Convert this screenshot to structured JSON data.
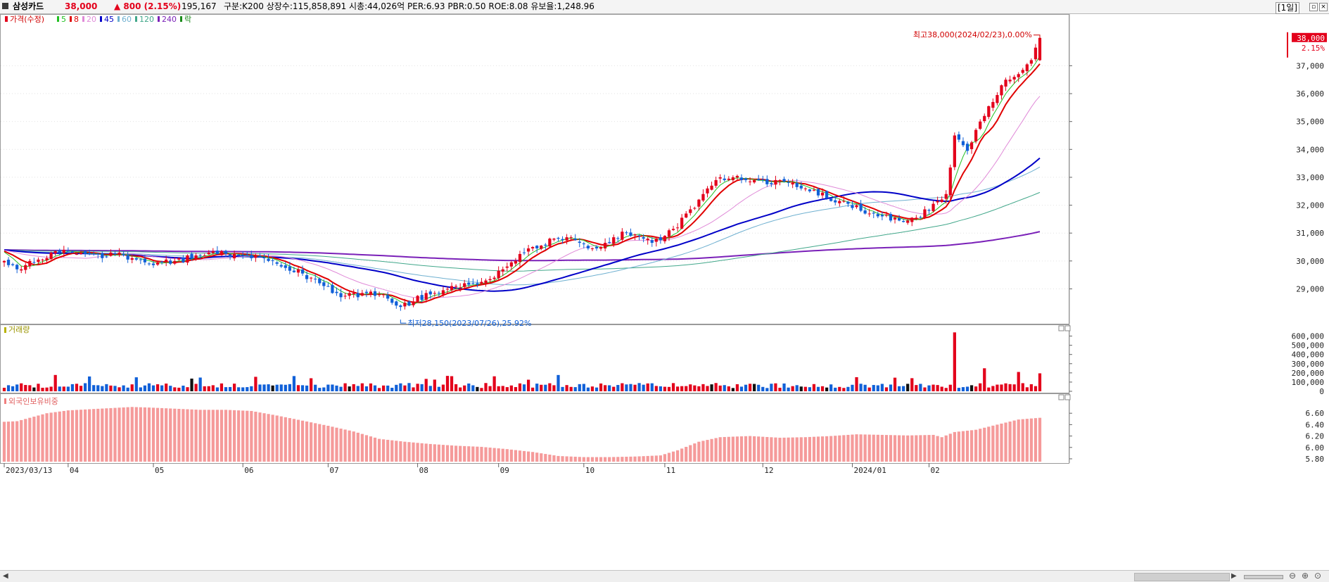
{
  "header": {
    "name": "삼성카드",
    "price": "38,000",
    "change": "▲ 800 (2.15%)",
    "volume": "195,167",
    "stats": "구분:K200 상장수:115,858,891 시총:44,026억 PER:6.93 PBR:0.50 ROE:8.08 유보율:1,248.96",
    "period_button": "[1일]",
    "minimize_icon": "minimize-icon",
    "close_icon": "close-icon"
  },
  "legend": {
    "price_label": "가격(수정)",
    "ma_labels": [
      "5",
      "8",
      "20",
      "45",
      "60",
      "120",
      "240"
    ],
    "ma_colors": [
      "#22c022",
      "#e00000",
      "#e08ad8",
      "#0000c8",
      "#6fb0d0",
      "#41a78a",
      "#7a20b8"
    ],
    "extra_label": "락"
  },
  "annotations": {
    "high_label": "최고38,000(2024/02/23),0.00%",
    "low_label": "최저28,150(2023/07/26),25.92%",
    "last_price_badge": "38,000",
    "last_change_badge": "2.15%"
  },
  "chart_data": {
    "type": "candlestick",
    "title": "삼성카드",
    "x_tick_labels": [
      "2023/03/13",
      "04",
      "05",
      "06",
      "07",
      "08",
      "09",
      "10",
      "11",
      "12",
      "2024/01",
      "02"
    ],
    "x_tick_positions_bar_index": [
      0,
      15,
      35,
      56,
      76,
      97,
      116,
      136,
      155,
      178,
      199,
      217
    ],
    "panels": [
      {
        "name": "가격(수정)",
        "y_ticks": [
          29000,
          30000,
          31000,
          32000,
          33000,
          34000,
          35000,
          36000,
          37000
        ],
        "ylim": [
          27800,
          38550
        ],
        "approx_close_path": [
          [
            0,
            30100
          ],
          [
            3,
            29600
          ],
          [
            5,
            29900
          ],
          [
            8,
            30000
          ],
          [
            11,
            30200
          ],
          [
            14,
            30350
          ],
          [
            17,
            30300
          ],
          [
            20,
            30250
          ],
          [
            23,
            30200
          ],
          [
            26,
            30300
          ],
          [
            29,
            30100
          ],
          [
            32,
            30050
          ],
          [
            34,
            29950
          ],
          [
            37,
            29900
          ],
          [
            40,
            30000
          ],
          [
            43,
            30100
          ],
          [
            46,
            30250
          ],
          [
            49,
            30300
          ],
          [
            52,
            30250
          ],
          [
            55,
            30200
          ],
          [
            58,
            30150
          ],
          [
            61,
            30050
          ],
          [
            64,
            29900
          ],
          [
            67,
            29750
          ],
          [
            70,
            29500
          ],
          [
            73,
            29350
          ],
          [
            76,
            29050
          ],
          [
            79,
            28750
          ],
          [
            82,
            28800
          ],
          [
            85,
            28850
          ],
          [
            88,
            28750
          ],
          [
            91,
            28600
          ],
          [
            93,
            28350
          ],
          [
            96,
            28550
          ],
          [
            99,
            28800
          ],
          [
            102,
            28950
          ],
          [
            105,
            29050
          ],
          [
            108,
            29100
          ],
          [
            111,
            29150
          ],
          [
            114,
            29300
          ],
          [
            117,
            29700
          ],
          [
            120,
            30050
          ],
          [
            123,
            30350
          ],
          [
            126,
            30600
          ],
          [
            129,
            30800
          ],
          [
            132,
            30900
          ],
          [
            134,
            30700
          ],
          [
            137,
            30400
          ],
          [
            140,
            30600
          ],
          [
            143,
            30850
          ],
          [
            146,
            30950
          ],
          [
            149,
            30800
          ],
          [
            152,
            30650
          ],
          [
            155,
            30900
          ],
          [
            158,
            31300
          ],
          [
            161,
            31800
          ],
          [
            164,
            32400
          ],
          [
            167,
            32900
          ],
          [
            170,
            33000
          ],
          [
            173,
            33000
          ],
          [
            176,
            32800
          ],
          [
            179,
            32800
          ],
          [
            182,
            32800
          ],
          [
            185,
            32800
          ],
          [
            188,
            32600
          ],
          [
            191,
            32400
          ],
          [
            194,
            32200
          ],
          [
            197,
            32100
          ],
          [
            200,
            31900
          ],
          [
            203,
            31700
          ],
          [
            206,
            31550
          ],
          [
            209,
            31500
          ],
          [
            212,
            31450
          ],
          [
            215,
            31650
          ],
          [
            218,
            32000
          ],
          [
            221,
            32400
          ],
          [
            223,
            34500
          ],
          [
            226,
            34000
          ],
          [
            229,
            35000
          ],
          [
            232,
            35800
          ],
          [
            235,
            36500
          ],
          [
            238,
            36800
          ],
          [
            241,
            37200
          ],
          [
            243,
            38000
          ]
        ],
        "high": {
          "value": 38000,
          "date": "2024/02/23"
        },
        "low": {
          "value": 28150,
          "date": "2023/07/26"
        },
        "last": 38000,
        "moving_averages": [
          {
            "name": "5",
            "color": "#22c022"
          },
          {
            "name": "8",
            "color": "#e00000"
          },
          {
            "name": "20",
            "color": "#e08ad8"
          },
          {
            "name": "45",
            "color": "#0000c8"
          },
          {
            "name": "60",
            "color": "#6fb0d0"
          },
          {
            "name": "120",
            "color": "#41a78a"
          },
          {
            "name": "240",
            "color": "#7a20b8"
          }
        ]
      },
      {
        "name": "거래량",
        "y_ticks": [
          0,
          100000,
          200000,
          300000,
          400000,
          500000,
          600000
        ],
        "ylim": [
          0,
          650000
        ],
        "spikes": [
          [
            223,
            640000
          ],
          [
            230,
            250000
          ],
          [
            238,
            210000
          ],
          [
            243,
            195167
          ]
        ]
      },
      {
        "name": "외국인보유비중",
        "y_ticks": [
          5.8,
          6.0,
          6.2,
          6.4,
          6.6
        ],
        "ylim": [
          5.75,
          6.8
        ],
        "approx_path": [
          [
            0,
            6.45
          ],
          [
            3,
            6.46
          ],
          [
            6,
            6.52
          ],
          [
            10,
            6.6
          ],
          [
            15,
            6.65
          ],
          [
            20,
            6.67
          ],
          [
            25,
            6.69
          ],
          [
            30,
            6.71
          ],
          [
            34,
            6.7
          ],
          [
            40,
            6.68
          ],
          [
            46,
            6.66
          ],
          [
            52,
            6.66
          ],
          [
            58,
            6.64
          ],
          [
            64,
            6.56
          ],
          [
            70,
            6.47
          ],
          [
            76,
            6.38
          ],
          [
            82,
            6.28
          ],
          [
            88,
            6.15
          ],
          [
            94,
            6.1
          ],
          [
            100,
            6.06
          ],
          [
            106,
            6.03
          ],
          [
            112,
            6.01
          ],
          [
            118,
            5.97
          ],
          [
            124,
            5.92
          ],
          [
            130,
            5.85
          ],
          [
            136,
            5.83
          ],
          [
            142,
            5.83
          ],
          [
            148,
            5.84
          ],
          [
            154,
            5.86
          ],
          [
            158,
            5.95
          ],
          [
            163,
            6.1
          ],
          [
            168,
            6.18
          ],
          [
            175,
            6.2
          ],
          [
            182,
            6.17
          ],
          [
            188,
            6.18
          ],
          [
            194,
            6.2
          ],
          [
            200,
            6.23
          ],
          [
            206,
            6.22
          ],
          [
            212,
            6.21
          ],
          [
            218,
            6.22
          ],
          [
            220,
            6.18
          ],
          [
            223,
            6.27
          ],
          [
            228,
            6.31
          ],
          [
            233,
            6.4
          ],
          [
            238,
            6.49
          ],
          [
            243,
            6.52
          ]
        ]
      }
    ]
  },
  "panels_labels": {
    "volume_label": "거래량",
    "foreign_label": "외국인보유비중"
  },
  "scrollbar": {
    "left_arrow_icon": "scroll-left-icon",
    "right_arrow_icon": "scroll-right-icon",
    "zoom_icons": [
      "zoom-out-icon",
      "zoom-in-icon",
      "zoom-reset-icon"
    ]
  }
}
